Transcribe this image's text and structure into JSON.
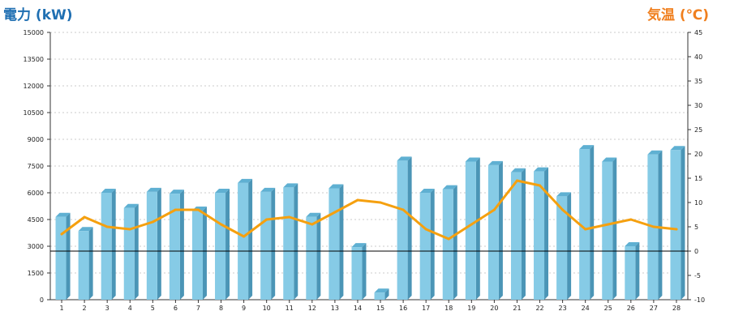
{
  "chart_data": {
    "type": "bar",
    "ylabel_left": "電力 (kW)",
    "ylabel_right": "気温 (℃)",
    "categories": [
      "1",
      "2",
      "3",
      "4",
      "5",
      "6",
      "7",
      "8",
      "9",
      "10",
      "11",
      "12",
      "13",
      "14",
      "15",
      "16",
      "17",
      "18",
      "19",
      "20",
      "21",
      "22",
      "23",
      "24",
      "25",
      "26",
      "27",
      "28"
    ],
    "ylim_left": [
      0,
      15000
    ],
    "yticks_left": [
      "0",
      "1500",
      "3000",
      "4500",
      "6000",
      "7500",
      "9000",
      "10500",
      "12000",
      "13500",
      "15000"
    ],
    "ylim_right": [
      -10,
      45
    ],
    "yticks_right": [
      "-10",
      "-5",
      "0",
      "5",
      "10",
      "15",
      "20",
      "25",
      "30",
      "35",
      "40",
      "45"
    ],
    "grid": true,
    "series": [
      {
        "type": "bar",
        "axis": "left",
        "values": [
          4650,
          3850,
          6000,
          5150,
          6050,
          5950,
          5000,
          6000,
          6550,
          6050,
          6300,
          4650,
          6250,
          2950,
          400,
          7800,
          6000,
          6200,
          7750,
          7550,
          7150,
          7200,
          5800,
          8450,
          7750,
          3000,
          8150,
          8400
        ]
      },
      {
        "type": "line",
        "axis": "right",
        "values": [
          3.5,
          7.0,
          5.0,
          4.5,
          6.0,
          8.5,
          8.5,
          5.5,
          3.0,
          6.5,
          7.0,
          5.5,
          8.0,
          10.5,
          10.0,
          8.5,
          4.5,
          2.5,
          5.5,
          8.5,
          14.5,
          13.5,
          8.5,
          4.5,
          5.5,
          6.5,
          5.0,
          4.5
        ]
      }
    ],
    "colors": {
      "bar_front": "#86cbe6",
      "bar_side": "#4b95b6",
      "bar_top": "#5fb0d2",
      "line": "#f5a00f",
      "left_label": "#1f6fb2",
      "right_label": "#f07f1e"
    }
  }
}
